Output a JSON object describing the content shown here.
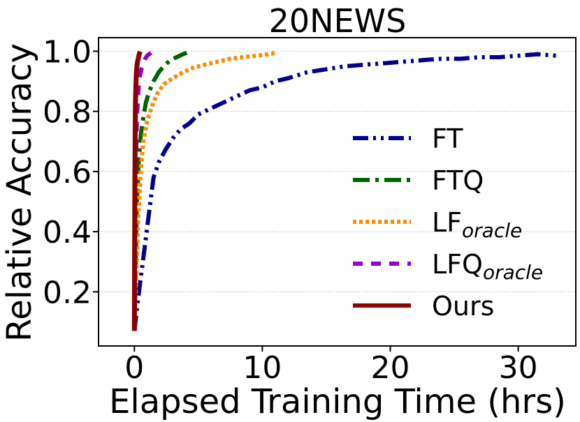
{
  "chart_data": {
    "type": "line",
    "title": "20NEWS",
    "xlabel": "Elapsed Training Time (hrs)",
    "ylabel": "Relative Accuracy",
    "xlim": [
      -2.8,
      34.5
    ],
    "ylim": [
      0.02,
      1.045
    ],
    "xticks": [
      0,
      10,
      20,
      30
    ],
    "xtick_labels": [
      "0",
      "10",
      "20",
      "30"
    ],
    "yticks": [
      0.2,
      0.4,
      0.6,
      0.8,
      1.0
    ],
    "ytick_labels": [
      "0.2",
      "0.4",
      "0.6",
      "0.8",
      "1.0"
    ],
    "grid": "horizontal dotted",
    "legend_position": "lower-right",
    "series": [
      {
        "name": "FT",
        "color": "#00008b",
        "style": "dashdotdot",
        "x": [
          0.0,
          0.3,
          0.6,
          0.9,
          1.2,
          1.5,
          1.9,
          2.4,
          3.0,
          3.6,
          4.3,
          5.0,
          6.0,
          7.0,
          8.0,
          9.0,
          10.0,
          11.0,
          12.0,
          13.5,
          15.0,
          16.5,
          18.0,
          19.5,
          21.0,
          22.5,
          24.0,
          25.5,
          27.0,
          28.5,
          30.0,
          31.5,
          33.0
        ],
        "y": [
          0.07,
          0.18,
          0.28,
          0.38,
          0.48,
          0.58,
          0.63,
          0.67,
          0.71,
          0.74,
          0.76,
          0.79,
          0.81,
          0.83,
          0.85,
          0.87,
          0.88,
          0.9,
          0.91,
          0.93,
          0.94,
          0.95,
          0.955,
          0.96,
          0.965,
          0.97,
          0.975,
          0.975,
          0.98,
          0.98,
          0.985,
          0.99,
          0.985
        ]
      },
      {
        "name": "FTQ",
        "color": "#006400",
        "style": "dashdot",
        "x": [
          0.0,
          0.1,
          0.2,
          0.35,
          0.5,
          0.7,
          0.9,
          1.2,
          1.5,
          1.9,
          2.3,
          2.8,
          3.3,
          3.8,
          4.1
        ],
        "y": [
          0.07,
          0.3,
          0.5,
          0.64,
          0.72,
          0.78,
          0.83,
          0.87,
          0.9,
          0.93,
          0.95,
          0.97,
          0.98,
          0.99,
          0.995
        ]
      },
      {
        "name": "LF",
        "name_sub": "oracle",
        "color": "#ff8c00",
        "style": "dotted",
        "x": [
          0.0,
          0.15,
          0.3,
          0.5,
          0.7,
          1.0,
          1.4,
          1.8,
          2.3,
          3.0,
          3.8,
          4.6,
          5.5,
          6.5,
          7.5,
          8.5,
          9.5,
          10.5,
          11.1
        ],
        "y": [
          0.07,
          0.25,
          0.45,
          0.6,
          0.7,
          0.77,
          0.82,
          0.86,
          0.89,
          0.91,
          0.93,
          0.945,
          0.955,
          0.965,
          0.975,
          0.98,
          0.985,
          0.99,
          0.995
        ]
      },
      {
        "name": "LFQ",
        "name_sub": "oracle",
        "color": "#9400d3",
        "style": "dashed",
        "x": [
          0.0,
          0.05,
          0.1,
          0.2,
          0.3,
          0.4,
          0.55,
          0.7,
          0.85,
          1.0,
          1.15,
          1.3
        ],
        "y": [
          0.07,
          0.35,
          0.6,
          0.78,
          0.86,
          0.91,
          0.94,
          0.96,
          0.975,
          0.985,
          0.99,
          0.995
        ]
      },
      {
        "name": "Ours",
        "color": "#8b0000",
        "style": "solid",
        "x": [
          0.0,
          0.02,
          0.04,
          0.06,
          0.08,
          0.1,
          0.13,
          0.16,
          0.2,
          0.25,
          0.3,
          0.35,
          0.4,
          0.45
        ],
        "y": [
          0.07,
          0.3,
          0.55,
          0.7,
          0.8,
          0.86,
          0.9,
          0.93,
          0.95,
          0.965,
          0.975,
          0.985,
          0.993,
          0.999
        ]
      }
    ]
  }
}
